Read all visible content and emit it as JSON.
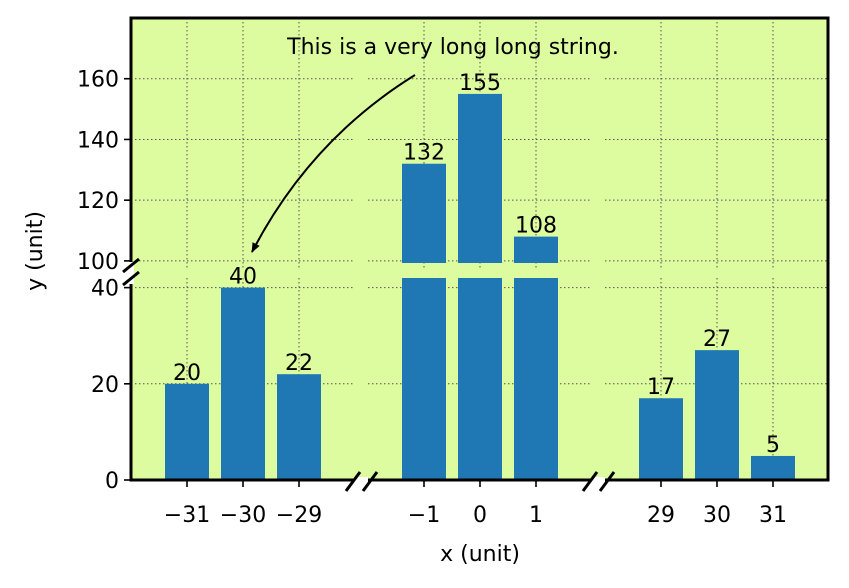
{
  "chart_data": {
    "type": "bar",
    "xlabel": "x (unit)",
    "ylabel": "y (unit)",
    "background_color": "#ddfca0",
    "bar_color": "#1f77b4",
    "grid": true,
    "x_segments": [
      {
        "categories": [
          "−31",
          "−30",
          "−29"
        ],
        "values": [
          20,
          40,
          22
        ]
      },
      {
        "categories": [
          "−1",
          "0",
          "1"
        ],
        "values": [
          132,
          155,
          108
        ]
      },
      {
        "categories": [
          "29",
          "30",
          "31"
        ],
        "values": [
          17,
          27,
          5
        ]
      }
    ],
    "y_segments": [
      {
        "ylim": [
          0,
          42
        ],
        "ticks": [
          0,
          20,
          40
        ]
      },
      {
        "ylim": [
          97,
          180
        ],
        "ticks": [
          100,
          120,
          140,
          160
        ]
      }
    ],
    "annotation": {
      "text": "This is a very long long string.",
      "target_category": "−30",
      "target_value": 40
    }
  }
}
